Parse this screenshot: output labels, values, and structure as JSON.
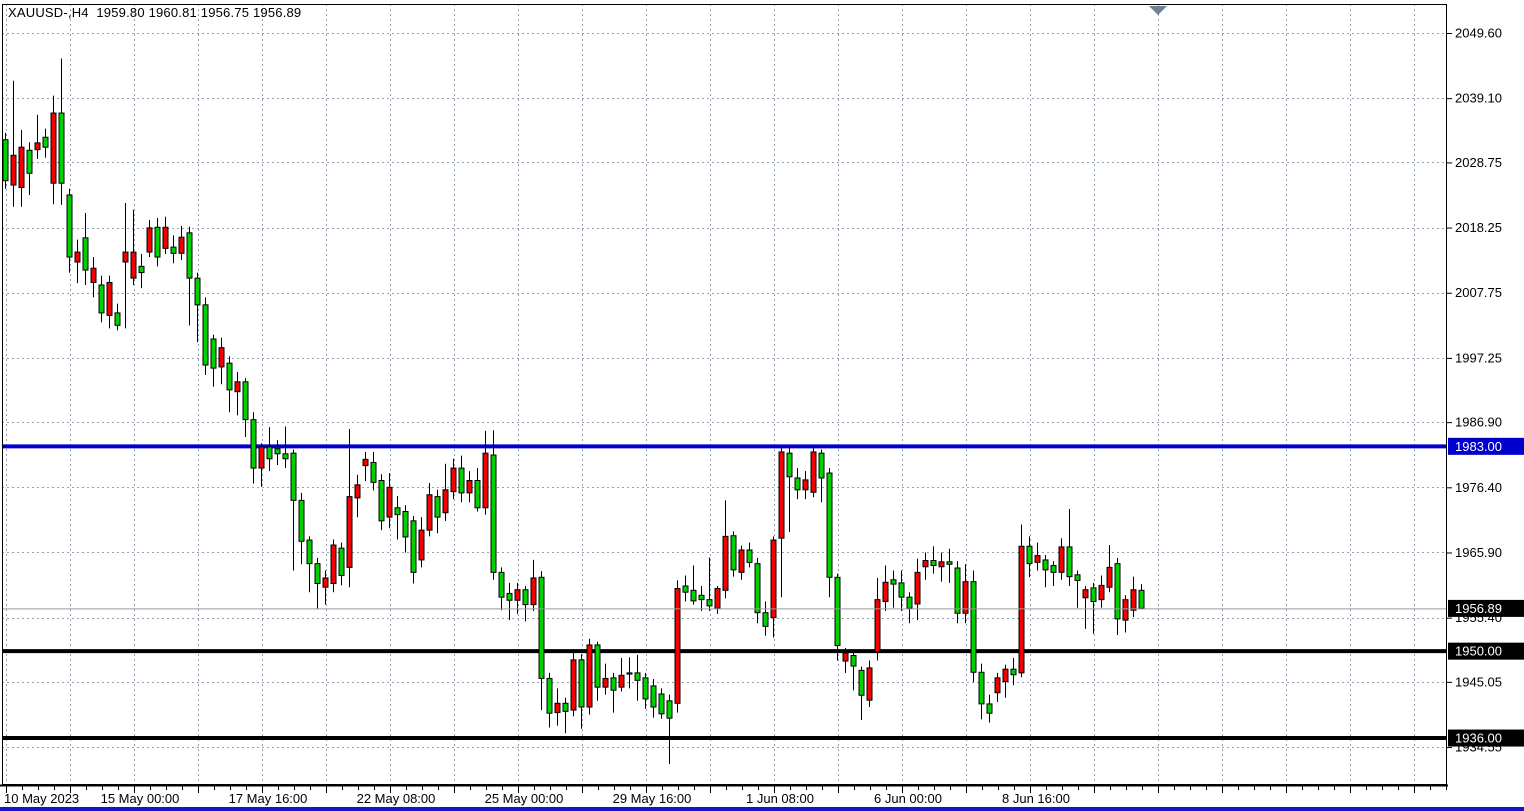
{
  "chart": {
    "title": "XAUUSD-,H4  1959.80 1960.81 1956.75 1956.89",
    "symbol": "XAUUSD-",
    "timeframe": "H4"
  },
  "colors": {
    "bull_body": "#f40000",
    "bear_body": "#00d200",
    "candle_outline": "#000000",
    "grid": "#93a2b2",
    "border": "#000000",
    "line_blue": "#0000cd",
    "line_black": "#000000",
    "current_price_line": "#9a9a9a",
    "label_text": "#000000",
    "highlight_text": "#ffffff",
    "shift_marker": "#708090",
    "bottom_edge": "#1414c8"
  },
  "markers": {
    "shift_marker_icon": "triangle-down"
  },
  "price_axis": {
    "gridline_labels": [
      "2049.60",
      "2039.10",
      "2028.75",
      "2018.25",
      "2007.75",
      "1997.25",
      "1986.90",
      "1976.40",
      "1965.90",
      "1955.40",
      "1945.05",
      "1934.55"
    ],
    "highlighted_labels": [
      {
        "text": "1983.00",
        "price": 1983.0,
        "bg": "#0000cd"
      },
      {
        "text": "1956.89",
        "price": 1956.89,
        "bg": "#000000"
      },
      {
        "text": "1950.00",
        "price": 1950.0,
        "bg": "#000000"
      },
      {
        "text": "1936.00",
        "price": 1936.0,
        "bg": "#000000"
      }
    ]
  },
  "time_axis": {
    "labels": [
      "10 May 2023",
      "15 May 00:00",
      "17 May 16:00",
      "22 May 08:00",
      "25 May 00:00",
      "29 May 16:00",
      "1 Jun 08:00",
      "6 Jun 00:00",
      "8 Jun 16:00"
    ]
  },
  "chart_data": {
    "type": "candlestick",
    "title": "XAUUSD-,H4",
    "symbol": "XAUUSD-",
    "timeframe": "H4",
    "color_convention": "red body = bullish (close>open), green body = bearish (close<open)",
    "current_bar": {
      "open": 1959.8,
      "high": 1960.81,
      "low": 1956.75,
      "close": 1956.89
    },
    "y_axis_ticks": [
      2049.6,
      2039.1,
      2028.75,
      2018.25,
      2007.75,
      1997.25,
      1986.9,
      1976.4,
      1965.9,
      1955.4,
      1945.05,
      1934.55
    ],
    "x_axis_ticks": [
      "10 May 2023",
      "15 May 00:00",
      "17 May 16:00",
      "22 May 08:00",
      "25 May 00:00",
      "29 May 16:00",
      "1 Jun 08:00",
      "6 Jun 00:00",
      "8 Jun 16:00"
    ],
    "bars_per_x_tick": 16,
    "ylim": [
      1929,
      2052
    ],
    "grid": true,
    "horizontal_lines": [
      {
        "price": 1983.0,
        "color": "#0000cd",
        "width": 4,
        "role": "resistance-line"
      },
      {
        "price": 1956.89,
        "color": "#9a9a9a",
        "width": 1,
        "role": "current-price-line"
      },
      {
        "price": 1950.0,
        "color": "#000000",
        "width": 4,
        "role": "support-line"
      },
      {
        "price": 1936.0,
        "color": "#000000",
        "width": 4,
        "role": "support-line"
      }
    ],
    "bars_ohlc": [
      [
        2032.4,
        2033.5,
        2024.5,
        2025.8
      ],
      [
        2025.1,
        2041.9,
        2021.6,
        2029.9
      ],
      [
        2024.7,
        2034.0,
        2021.6,
        2031.2
      ],
      [
        2030.7,
        2032.0,
        2023.5,
        2027.0
      ],
      [
        2030.8,
        2036.4,
        2029.3,
        2031.9
      ],
      [
        2032.8,
        2034.2,
        2029.5,
        2031.2
      ],
      [
        2025.4,
        2039.5,
        2022.0,
        2036.7
      ],
      [
        2036.7,
        2045.5,
        2021.9,
        2025.4
      ],
      [
        2023.5,
        2024.5,
        2011.0,
        2013.5
      ],
      [
        2012.7,
        2016.3,
        2009.3,
        2014.3
      ],
      [
        2016.6,
        2020.6,
        2009.0,
        2011.4
      ],
      [
        2009.4,
        2013.5,
        2007.0,
        2011.7
      ],
      [
        2009.0,
        2010.5,
        2003.0,
        2004.5
      ],
      [
        2004.1,
        2010.5,
        2002.0,
        2009.4
      ],
      [
        2004.5,
        2006.0,
        2001.7,
        2002.5
      ],
      [
        2012.7,
        2022.2,
        2002.0,
        2014.3
      ],
      [
        2010.1,
        2021.1,
        2009.0,
        2014.3
      ],
      [
        2012.0,
        2014.0,
        2008.5,
        2011.0
      ],
      [
        2014.3,
        2019.5,
        2013.5,
        2018.2
      ],
      [
        2018.3,
        2019.8,
        2012.0,
        2013.5
      ],
      [
        2014.9,
        2020.0,
        2014.0,
        2018.3
      ],
      [
        2015.1,
        2017.0,
        2012.5,
        2014.1
      ],
      [
        2014.1,
        2018.5,
        2013.0,
        2016.7
      ],
      [
        2017.4,
        2018.4,
        2002.5,
        2010.1
      ],
      [
        2010.1,
        2011.0,
        1999.8,
        2005.8
      ],
      [
        2005.8,
        2007.0,
        1994.5,
        1996.1
      ],
      [
        2000.3,
        2001.0,
        1992.6,
        1995.6
      ],
      [
        1995.8,
        2000.5,
        1993.0,
        1998.9
      ],
      [
        1996.4,
        1997.5,
        1988.5,
        1992.1
      ],
      [
        1991.8,
        1995.0,
        1988.0,
        1993.4
      ],
      [
        1993.4,
        1994.0,
        1984.5,
        1987.3
      ],
      [
        1987.3,
        1988.5,
        1977.0,
        1979.5
      ],
      [
        1979.5,
        1983.5,
        1976.5,
        1982.9
      ],
      [
        1982.9,
        1986.1,
        1979.0,
        1981.0
      ],
      [
        1982.6,
        1984.0,
        1980.0,
        1981.8
      ],
      [
        1981.8,
        1986.2,
        1979.5,
        1981.0
      ],
      [
        1981.9,
        1982.5,
        1963.0,
        1974.3
      ],
      [
        1974.3,
        1975.5,
        1964.0,
        1967.7
      ],
      [
        1967.9,
        1968.5,
        1959.5,
        1964.1
      ],
      [
        1964.1,
        1965.0,
        1956.8,
        1960.9
      ],
      [
        1960.3,
        1963.0,
        1957.5,
        1961.8
      ],
      [
        1960.9,
        1968.0,
        1959.5,
        1967.1
      ],
      [
        1966.6,
        1967.5,
        1960.6,
        1962.2
      ],
      [
        1963.5,
        1985.8,
        1960.3,
        1974.9
      ],
      [
        1974.7,
        1978.4,
        1971.6,
        1976.8
      ],
      [
        1979.9,
        1982.1,
        1977.4,
        1980.9
      ],
      [
        1980.4,
        1982.1,
        1975.9,
        1977.2
      ],
      [
        1977.5,
        1978.5,
        1969.5,
        1971.0
      ],
      [
        1971.6,
        1978.7,
        1969.8,
        1976.4
      ],
      [
        1973.1,
        1975.0,
        1968.0,
        1972.0
      ],
      [
        1972.5,
        1973.5,
        1965.9,
        1968.4
      ],
      [
        1971.0,
        1971.8,
        1960.9,
        1962.7
      ],
      [
        1964.7,
        1971.6,
        1963.5,
        1969.5
      ],
      [
        1969.5,
        1977.1,
        1968.5,
        1975.2
      ],
      [
        1974.9,
        1976.0,
        1969.0,
        1971.6
      ],
      [
        1972.3,
        1980.2,
        1971.0,
        1976.0
      ],
      [
        1975.7,
        1981.0,
        1974.5,
        1979.5
      ],
      [
        1979.5,
        1981.5,
        1974.0,
        1975.5
      ],
      [
        1975.5,
        1979.0,
        1974.0,
        1977.5
      ],
      [
        1977.5,
        1979.5,
        1972.5,
        1973.1
      ],
      [
        1973.1,
        1985.5,
        1972.0,
        1981.9
      ],
      [
        1981.6,
        1985.6,
        1961.5,
        1962.7
      ],
      [
        1962.7,
        1963.5,
        1956.6,
        1958.7
      ],
      [
        1959.3,
        1961.0,
        1955.0,
        1958.2
      ],
      [
        1958.2,
        1961.0,
        1956.0,
        1959.9
      ],
      [
        1959.9,
        1960.5,
        1954.8,
        1957.5
      ],
      [
        1957.5,
        1964.7,
        1956.5,
        1961.8
      ],
      [
        1961.9,
        1962.9,
        1940.5,
        1945.6
      ],
      [
        1945.6,
        1946.5,
        1937.7,
        1940.0
      ],
      [
        1940.1,
        1944.0,
        1938.0,
        1941.6
      ],
      [
        1941.6,
        1942.5,
        1936.8,
        1940.3
      ],
      [
        1940.5,
        1949.9,
        1939.5,
        1948.6
      ],
      [
        1948.6,
        1949.5,
        1937.5,
        1941.0
      ],
      [
        1941.0,
        1952.0,
        1939.8,
        1951.0
      ],
      [
        1951.0,
        1951.5,
        1942.0,
        1944.2
      ],
      [
        1944.2,
        1948.0,
        1943.0,
        1945.6
      ],
      [
        1945.7,
        1946.5,
        1940.1,
        1943.7
      ],
      [
        1944.2,
        1948.9,
        1943.5,
        1946.1
      ],
      [
        1946.3,
        1949.0,
        1944.0,
        1946.5
      ],
      [
        1946.5,
        1949.4,
        1942.0,
        1945.3
      ],
      [
        1945.7,
        1946.5,
        1940.7,
        1942.3
      ],
      [
        1944.4,
        1945.5,
        1939.3,
        1941.0
      ],
      [
        1943.1,
        1944.0,
        1939.1,
        1939.9
      ],
      [
        1942.0,
        1943.0,
        1931.8,
        1939.2
      ],
      [
        1941.6,
        1961.4,
        1940.1,
        1960.1
      ],
      [
        1960.5,
        1962.2,
        1958.0,
        1959.5
      ],
      [
        1959.8,
        1963.8,
        1957.5,
        1958.1
      ],
      [
        1959.0,
        1960.5,
        1956.5,
        1958.3
      ],
      [
        1958.3,
        1965.1,
        1956.5,
        1957.3
      ],
      [
        1956.9,
        1960.5,
        1956.0,
        1960.1
      ],
      [
        1959.8,
        1974.3,
        1958.5,
        1968.5
      ],
      [
        1968.6,
        1969.3,
        1962.0,
        1963.1
      ],
      [
        1962.7,
        1967.0,
        1961.5,
        1966.3
      ],
      [
        1966.3,
        1967.5,
        1963.5,
        1964.3
      ],
      [
        1964.1,
        1965.0,
        1954.5,
        1956.2
      ],
      [
        1956.2,
        1958.0,
        1952.5,
        1954.0
      ],
      [
        1955.4,
        1968.5,
        1952.2,
        1967.9
      ],
      [
        1968.2,
        1982.7,
        1958.7,
        1982.1
      ],
      [
        1981.9,
        1982.7,
        1969.2,
        1978.1
      ],
      [
        1977.9,
        1979.5,
        1974.5,
        1976.0
      ],
      [
        1976.0,
        1979.0,
        1974.5,
        1977.6
      ],
      [
        1975.6,
        1982.7,
        1974.8,
        1982.1
      ],
      [
        1981.9,
        1982.5,
        1974.0,
        1977.9
      ],
      [
        1978.7,
        1979.5,
        1958.7,
        1961.9
      ],
      [
        1961.9,
        1962.5,
        1948.5,
        1950.9
      ],
      [
        1948.4,
        1950.5,
        1946.5,
        1949.7
      ],
      [
        1949.3,
        1950.0,
        1943.7,
        1947.6
      ],
      [
        1946.9,
        1947.5,
        1938.9,
        1942.9
      ],
      [
        1942.1,
        1948.5,
        1941.0,
        1947.3
      ],
      [
        1949.9,
        1961.8,
        1948.5,
        1958.3
      ],
      [
        1958.0,
        1963.8,
        1956.5,
        1961.1
      ],
      [
        1961.5,
        1963.0,
        1957.0,
        1960.8
      ],
      [
        1961.0,
        1963.0,
        1956.5,
        1958.7
      ],
      [
        1958.7,
        1959.5,
        1954.5,
        1956.9
      ],
      [
        1957.6,
        1964.9,
        1955.0,
        1962.7
      ],
      [
        1963.6,
        1965.9,
        1961.5,
        1964.6
      ],
      [
        1964.6,
        1966.9,
        1962.5,
        1963.8
      ],
      [
        1963.6,
        1965.9,
        1961.2,
        1964.4
      ],
      [
        1964.4,
        1966.5,
        1961.0,
        1964.0
      ],
      [
        1963.4,
        1964.5,
        1954.5,
        1956.1
      ],
      [
        1956.1,
        1964.0,
        1954.5,
        1961.2
      ],
      [
        1961.2,
        1963.0,
        1945.0,
        1946.6
      ],
      [
        1946.6,
        1948.0,
        1939.0,
        1941.5
      ],
      [
        1941.5,
        1943.0,
        1938.5,
        1940.0
      ],
      [
        1943.3,
        1946.5,
        1941.8,
        1945.7
      ],
      [
        1945.1,
        1947.8,
        1942.5,
        1947.1
      ],
      [
        1947.1,
        1948.9,
        1944.5,
        1946.2
      ],
      [
        1946.5,
        1970.4,
        1945.8,
        1966.9
      ],
      [
        1966.9,
        1968.5,
        1961.9,
        1964.1
      ],
      [
        1964.3,
        1967.5,
        1963.0,
        1965.4
      ],
      [
        1964.7,
        1965.5,
        1960.3,
        1963.1
      ],
      [
        1963.8,
        1964.5,
        1960.5,
        1962.7
      ],
      [
        1962.7,
        1968.2,
        1961.5,
        1966.8
      ],
      [
        1966.8,
        1972.9,
        1960.5,
        1962.0
      ],
      [
        1962.3,
        1963.0,
        1957.0,
        1961.4
      ],
      [
        1958.6,
        1960.5,
        1953.6,
        1959.9
      ],
      [
        1960.2,
        1961.0,
        1952.8,
        1958.0
      ],
      [
        1958.3,
        1962.2,
        1957.0,
        1960.6
      ],
      [
        1960.3,
        1967.1,
        1959.5,
        1963.5
      ],
      [
        1964.1,
        1965.0,
        1952.6,
        1955.2
      ],
      [
        1955.0,
        1959.0,
        1953.0,
        1958.3
      ],
      [
        1956.6,
        1962.0,
        1955.5,
        1959.9
      ],
      [
        1959.8,
        1960.81,
        1956.75,
        1956.89
      ]
    ]
  }
}
